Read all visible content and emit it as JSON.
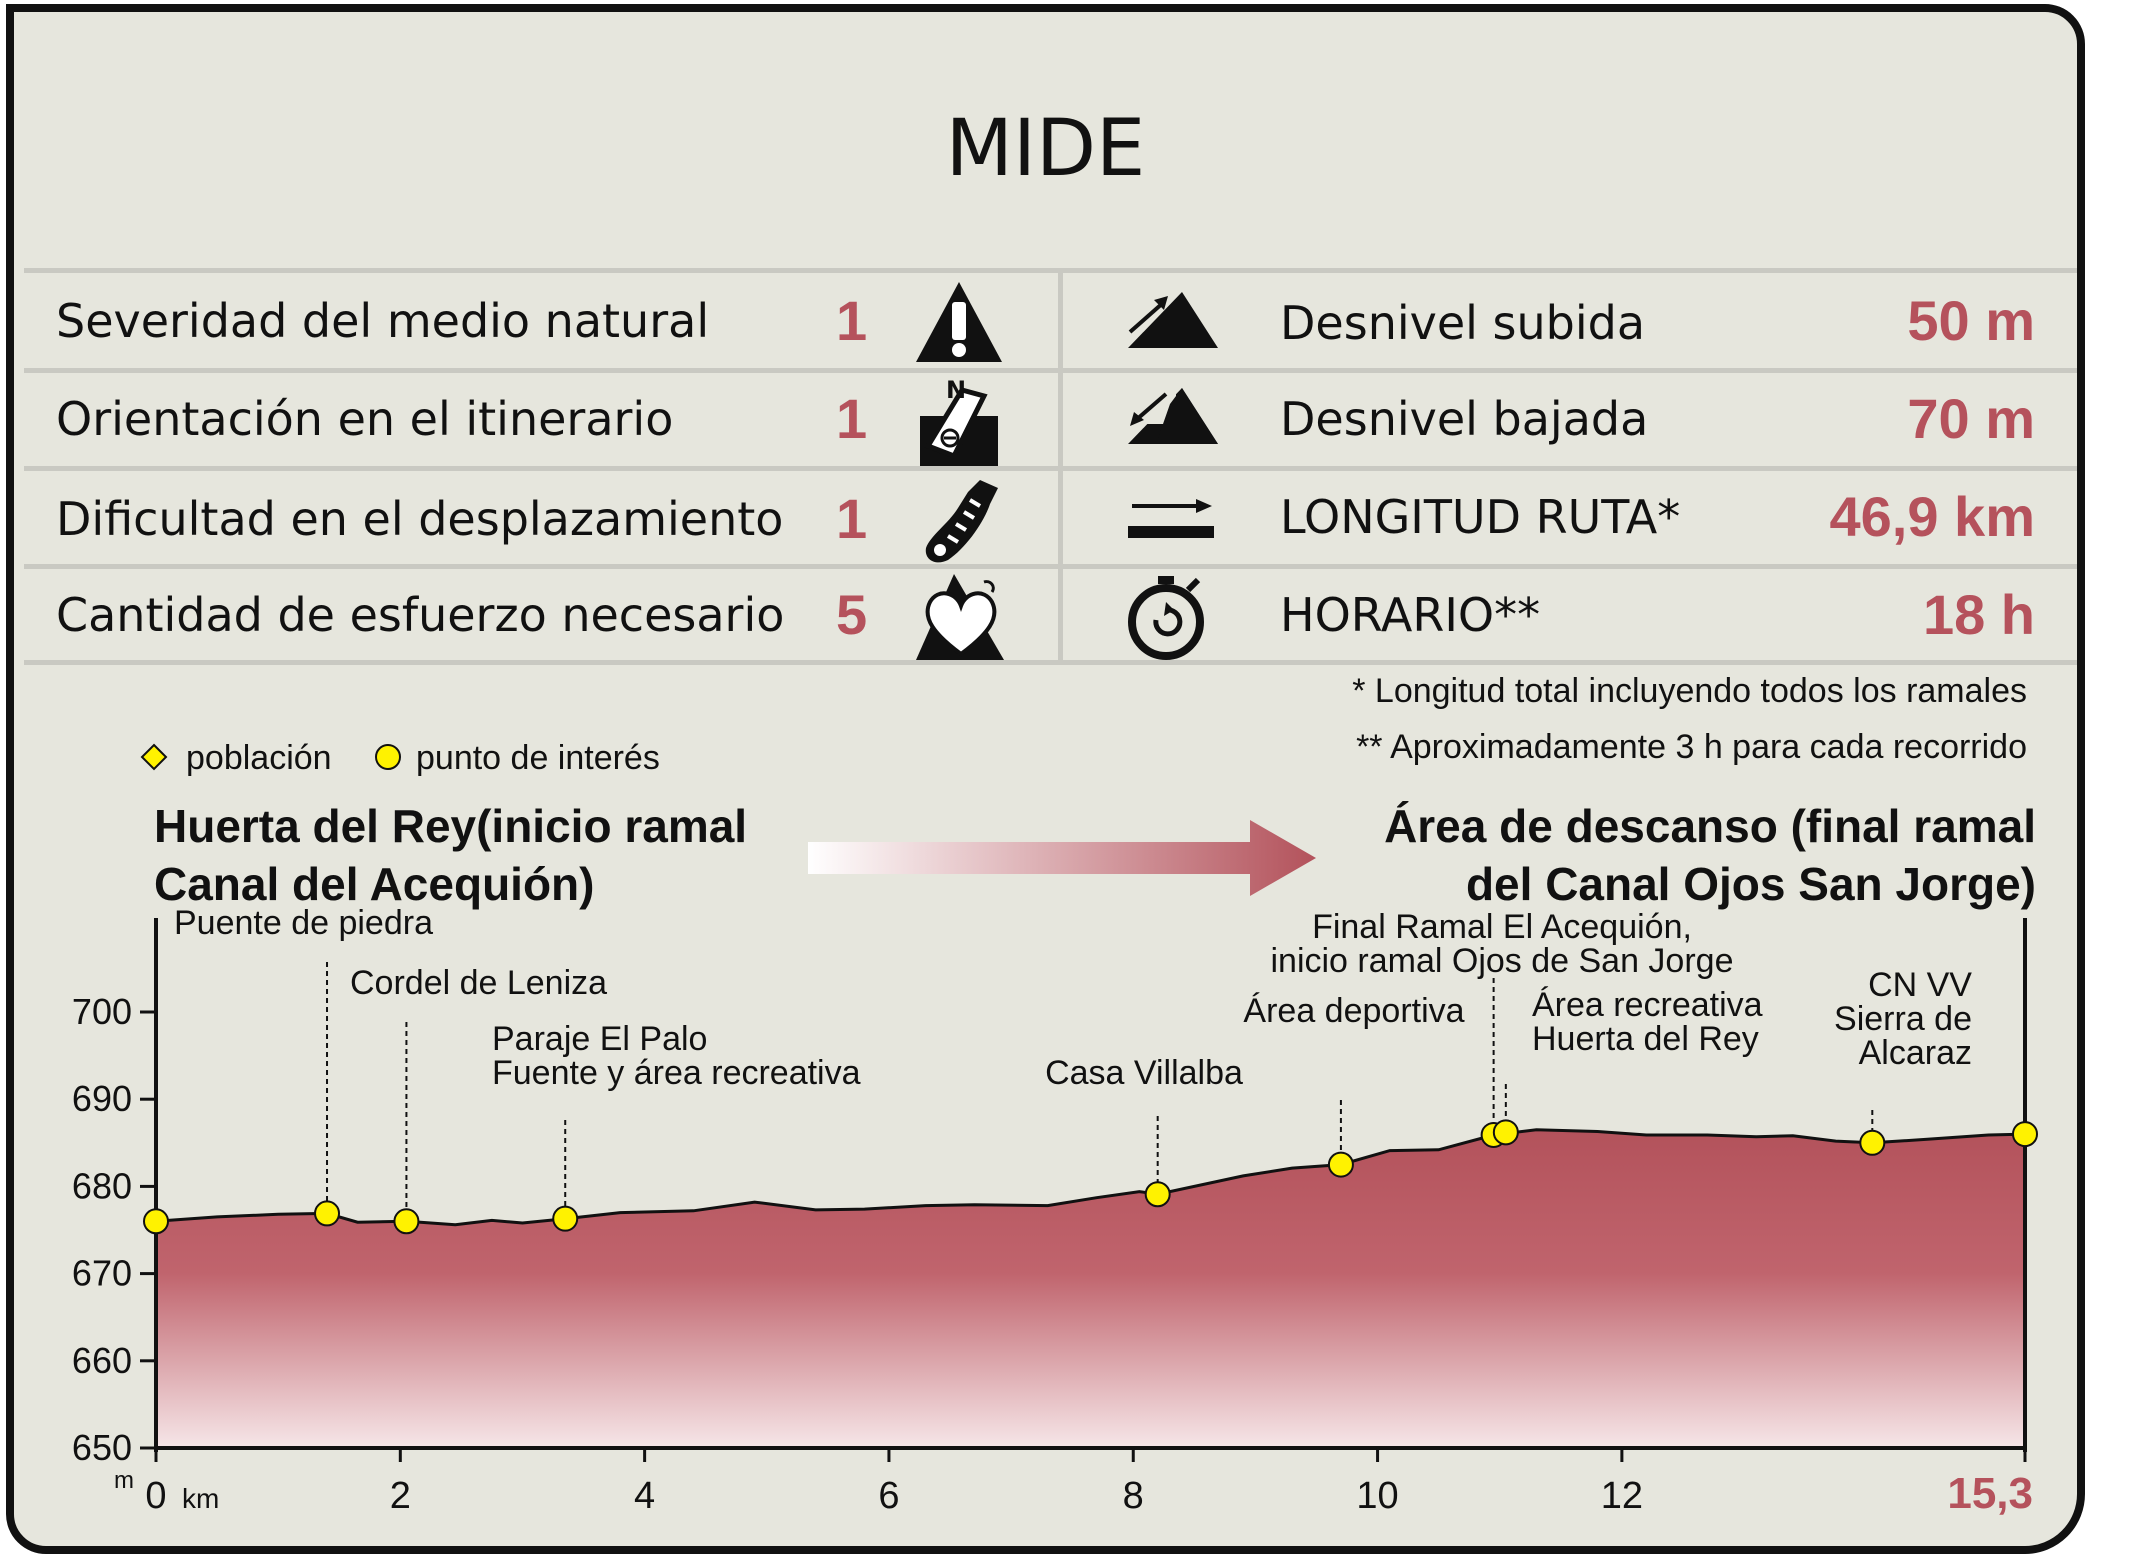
{
  "title": "MIDE",
  "mide_rows": [
    {
      "label": "Severidad del medio natural",
      "value": "1",
      "icon": "warning-triangle-icon"
    },
    {
      "label": "Orientación en el itinerario",
      "value": "1",
      "icon": "compass-orientation-icon"
    },
    {
      "label": "Dificultad en el desplazamiento",
      "value": "1",
      "icon": "boot-footprint-icon"
    },
    {
      "label": "Cantidad de esfuerzo necesario",
      "value": "5",
      "icon": "heart-mountain-icon"
    }
  ],
  "route_rows": [
    {
      "label": "Desnivel subida",
      "value": "50 m",
      "icon": "ascent-icon"
    },
    {
      "label": "Desnivel bajada",
      "value": "70 m",
      "icon": "descent-icon"
    },
    {
      "label": "LONGITUD RUTA*",
      "value": "46,9 km",
      "icon": "distance-arrow-icon"
    },
    {
      "label": "HORARIO**",
      "value": "18 h",
      "icon": "stopwatch-icon"
    }
  ],
  "notes": [
    "* Longitud total incluyendo todos los ramales",
    "** Aproximadamente 3 h para cada recorrido"
  ],
  "legend": {
    "poblacion": "población",
    "punto": "punto de interés"
  },
  "route": {
    "start_line1": "Huerta del Rey(inicio ramal",
    "start_line2": "Canal del Acequión)",
    "end_line1": "Área de descanso (final ramal",
    "end_line2": "del Canal Ojos San Jorge)"
  },
  "colors": {
    "accent": "#b5525c",
    "fill_top": "#b3525b",
    "fill_bottom": "#f6e6e8",
    "marker": "#fff200",
    "background": "#e6e6dd"
  },
  "chart_data": {
    "type": "area",
    "xlabel": "km",
    "ylabel": "m",
    "xlim": [
      0,
      15.3
    ],
    "ylim": [
      650,
      705
    ],
    "x_ticks": [
      "0",
      "2",
      "4",
      "6",
      "8",
      "10",
      "12"
    ],
    "x_end_label": "15,3",
    "y_ticks": [
      "650",
      "660",
      "670",
      "680",
      "690",
      "700"
    ],
    "profile": [
      [
        0,
        676
      ],
      [
        0.5,
        676.5
      ],
      [
        1.0,
        676.8
      ],
      [
        1.4,
        676.9
      ],
      [
        1.65,
        675.9
      ],
      [
        2.05,
        676.0
      ],
      [
        2.45,
        675.6
      ],
      [
        2.75,
        676.1
      ],
      [
        3.0,
        675.8
      ],
      [
        3.35,
        676.3
      ],
      [
        3.8,
        677.0
      ],
      [
        4.4,
        677.2
      ],
      [
        4.9,
        678.2
      ],
      [
        5.4,
        677.3
      ],
      [
        5.8,
        677.4
      ],
      [
        6.3,
        677.8
      ],
      [
        6.7,
        677.9
      ],
      [
        7.3,
        677.8
      ],
      [
        7.7,
        678.7
      ],
      [
        8.05,
        679.4
      ],
      [
        8.2,
        679.1
      ],
      [
        8.9,
        681.2
      ],
      [
        9.3,
        682.1
      ],
      [
        9.7,
        682.5
      ],
      [
        10.1,
        684.1
      ],
      [
        10.5,
        684.2
      ],
      [
        10.95,
        685.9
      ],
      [
        11.3,
        686.5
      ],
      [
        11.8,
        686.3
      ],
      [
        12.2,
        685.9
      ],
      [
        12.7,
        685.9
      ],
      [
        13.1,
        685.7
      ],
      [
        13.4,
        685.8
      ],
      [
        13.75,
        685.2
      ],
      [
        14.05,
        685.0
      ],
      [
        14.5,
        685.4
      ],
      [
        15.0,
        685.9
      ],
      [
        15.3,
        686.0
      ]
    ],
    "points": [
      {
        "x": 0.0,
        "y": 676.0,
        "label": "",
        "kind": "punto"
      },
      {
        "x": 1.4,
        "y": 676.9,
        "label": "Puente de piedra",
        "kind": "punto"
      },
      {
        "x": 2.05,
        "y": 676.0,
        "label": "Cordel de Leniza",
        "kind": "punto"
      },
      {
        "x": 3.35,
        "y": 676.3,
        "label": "Paraje El Palo\nFuente y área recreativa",
        "kind": "punto"
      },
      {
        "x": 8.2,
        "y": 679.1,
        "label": "Casa Villalba",
        "kind": "punto"
      },
      {
        "x": 9.7,
        "y": 682.5,
        "label": "Área deportiva",
        "kind": "punto"
      },
      {
        "x": 10.95,
        "y": 685.9,
        "label": "Final Ramal El Acequión,\ninicio ramal Ojos de San Jorge",
        "kind": "punto"
      },
      {
        "x": 11.05,
        "y": 686.2,
        "label": "Área recreativa\nHuerta del Rey",
        "kind": "punto"
      },
      {
        "x": 14.05,
        "y": 685.0,
        "label": "CN VV\nSierra de\nAlcaraz",
        "kind": "punto"
      },
      {
        "x": 15.3,
        "y": 686.0,
        "label": "",
        "kind": "punto"
      }
    ]
  }
}
